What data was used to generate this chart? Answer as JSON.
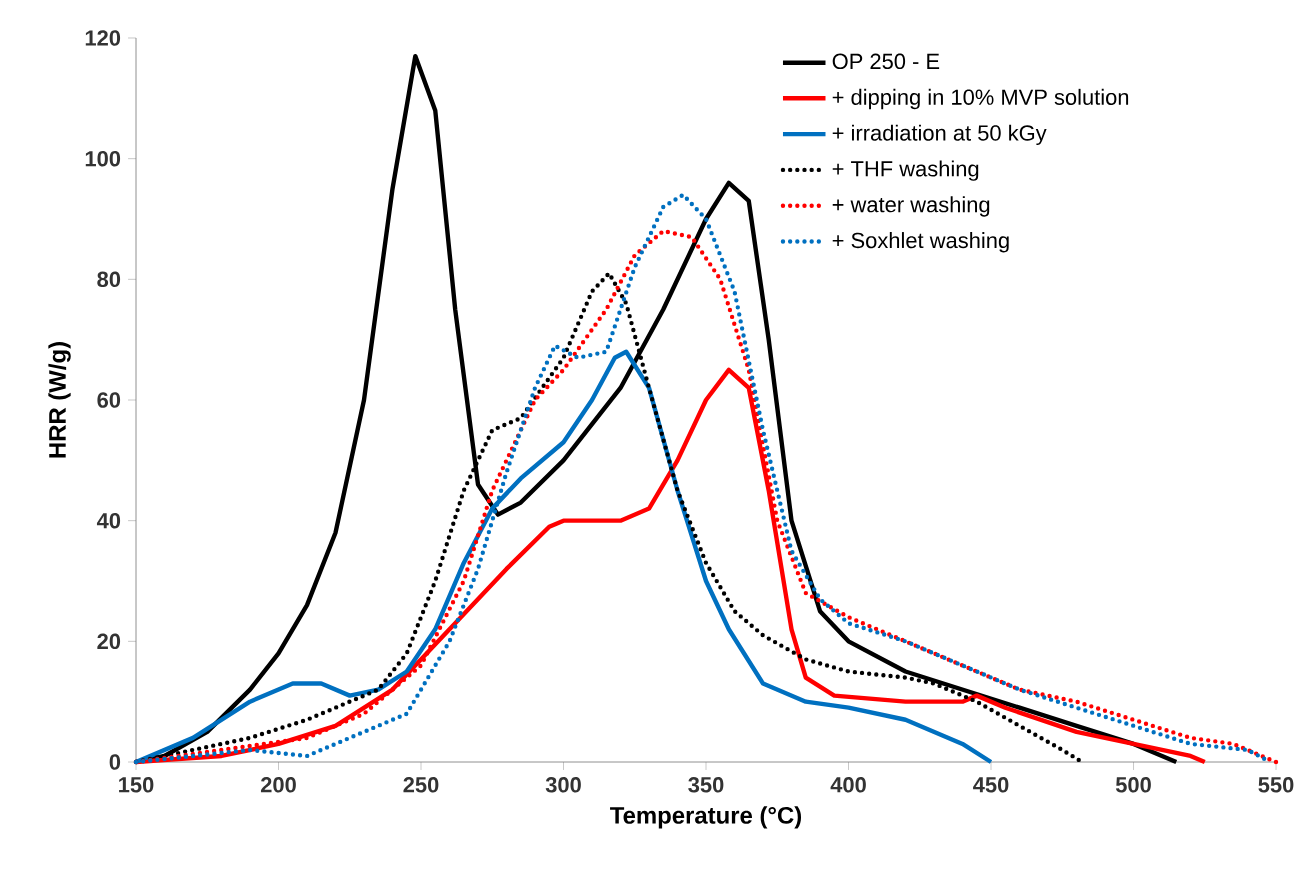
{
  "chart_data": {
    "type": "line",
    "xlabel": "Temperature (°C)",
    "ylabel": "HRR (W/g)",
    "xlim": [
      150,
      550
    ],
    "ylim": [
      0,
      120
    ],
    "xticks": [
      150,
      200,
      250,
      300,
      350,
      400,
      450,
      500,
      550
    ],
    "yticks": [
      0,
      20,
      40,
      60,
      80,
      100,
      120
    ],
    "grid": false,
    "legend": "top right",
    "series": [
      {
        "name": "OP 250 - E",
        "color": "#000000",
        "line_style": "solid",
        "x": [
          150,
          160,
          175,
          190,
          200,
          210,
          220,
          230,
          240,
          248,
          255,
          262,
          270,
          277,
          285,
          300,
          320,
          335,
          350,
          358,
          365,
          372,
          380,
          390,
          400,
          420,
          440,
          460,
          480,
          500,
          510,
          515
        ],
        "values": [
          0,
          1,
          5,
          12,
          18,
          26,
          38,
          60,
          95,
          117,
          108,
          75,
          46,
          41,
          43,
          50,
          62,
          75,
          90,
          96,
          93,
          70,
          40,
          25,
          20,
          15,
          12,
          9,
          6,
          3,
          1,
          0
        ]
      },
      {
        "name": "+ dipping in 10% MVP solution",
        "color": "#ff0000",
        "line_style": "solid",
        "x": [
          150,
          180,
          200,
          220,
          240,
          260,
          280,
          295,
          300,
          320,
          330,
          340,
          350,
          358,
          365,
          372,
          380,
          385,
          395,
          420,
          440,
          445,
          455,
          480,
          500,
          520,
          525
        ],
        "values": [
          0,
          1,
          3,
          6,
          12,
          22,
          32,
          39,
          40,
          40,
          42,
          50,
          60,
          65,
          62,
          45,
          22,
          14,
          11,
          10,
          10,
          11,
          9,
          5,
          3,
          1,
          0
        ]
      },
      {
        "name": "+ irradiation at 50 kGy",
        "color": "#0070c0",
        "line_style": "solid",
        "x": [
          150,
          170,
          190,
          205,
          215,
          225,
          235,
          245,
          255,
          265,
          275,
          285,
          300,
          310,
          318,
          322,
          330,
          340,
          350,
          358,
          370,
          385,
          400,
          420,
          440,
          450
        ],
        "values": [
          0,
          4,
          10,
          13,
          13,
          11,
          12,
          15,
          22,
          33,
          42,
          47,
          53,
          60,
          67,
          68,
          62,
          45,
          30,
          22,
          13,
          10,
          9,
          7,
          3,
          0
        ]
      },
      {
        "name": "+ THF washing",
        "color": "#000000",
        "line_style": "dotted",
        "x": [
          150,
          170,
          190,
          210,
          225,
          235,
          245,
          255,
          265,
          275,
          285,
          300,
          310,
          316,
          322,
          330,
          340,
          350,
          360,
          370,
          385,
          400,
          420,
          430,
          445,
          460,
          475,
          482
        ],
        "values": [
          0,
          2,
          4,
          7,
          10,
          12,
          18,
          30,
          45,
          55,
          57,
          67,
          78,
          81,
          76,
          62,
          45,
          33,
          25,
          21,
          17,
          15,
          14,
          13,
          10,
          6,
          2,
          0
        ]
      },
      {
        "name": "+ water washing",
        "color": "#ff0000",
        "line_style": "dotted",
        "x": [
          150,
          180,
          210,
          230,
          250,
          265,
          275,
          290,
          300,
          315,
          325,
          335,
          345,
          355,
          365,
          375,
          385,
          400,
          420,
          440,
          460,
          480,
          500,
          520,
          535,
          545,
          550
        ],
        "values": [
          0,
          2,
          4,
          8,
          16,
          30,
          45,
          60,
          65,
          75,
          84,
          88,
          87,
          80,
          65,
          40,
          28,
          24,
          20,
          16,
          12,
          10,
          7,
          4,
          3,
          1,
          0
        ]
      },
      {
        "name": "+ Soxhlet washing",
        "color": "#0070c0",
        "line_style": "dotted",
        "x": [
          150,
          190,
          210,
          225,
          245,
          260,
          270,
          280,
          290,
          297,
          305,
          315,
          325,
          335,
          342,
          350,
          360,
          370,
          380,
          390,
          400,
          420,
          440,
          460,
          480,
          500,
          520,
          540,
          548
        ],
        "values": [
          0,
          2,
          1,
          4,
          8,
          20,
          32,
          48,
          62,
          69,
          67,
          68,
          82,
          92,
          94,
          90,
          78,
          55,
          35,
          27,
          23,
          20,
          16,
          12,
          9,
          6,
          3,
          2,
          0
        ]
      }
    ]
  }
}
